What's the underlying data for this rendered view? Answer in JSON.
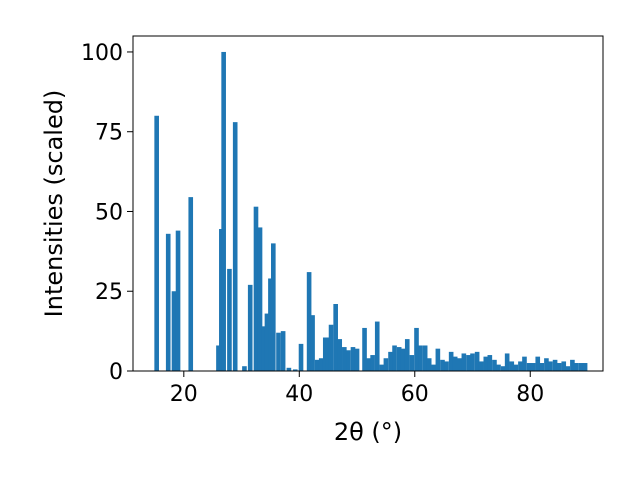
{
  "chart_data": {
    "type": "bar",
    "xlabel": "2θ (°)",
    "ylabel": "Intensities (scaled)",
    "xlim": [
      11.2,
      92.6
    ],
    "ylim": [
      0,
      105
    ],
    "xticks": [
      20,
      40,
      60,
      80
    ],
    "yticks": [
      0,
      25,
      50,
      75,
      100
    ],
    "bar_color": "#1f77b4",
    "bar_width_deg": 0.8,
    "x": [
      15.3,
      17.3,
      18.3,
      19.0,
      21.2,
      26.0,
      26.5,
      26.9,
      27.9,
      28.9,
      30.5,
      31.5,
      32.5,
      33.2,
      33.8,
      34.4,
      35.0,
      35.5,
      36.4,
      37.2,
      38.2,
      39.3,
      40.3,
      41.7,
      42.3,
      43.1,
      43.8,
      44.5,
      45.0,
      45.5,
      46.3,
      47.0,
      47.8,
      48.5,
      49.3,
      50.0,
      51.3,
      52.0,
      52.7,
      53.5,
      54.3,
      55.0,
      55.8,
      56.5,
      57.3,
      58.0,
      58.7,
      59.5,
      60.3,
      61.0,
      61.8,
      62.5,
      63.3,
      64.0,
      64.8,
      65.5,
      66.3,
      67.0,
      67.8,
      68.5,
      69.3,
      70.0,
      70.8,
      71.5,
      72.3,
      73.0,
      73.8,
      74.5,
      75.3,
      76.0,
      76.8,
      77.5,
      78.3,
      79.0,
      79.8,
      80.5,
      81.3,
      82.0,
      82.8,
      83.5,
      84.3,
      85.0,
      85.8,
      86.5,
      87.3,
      88.0,
      88.8,
      89.5
    ],
    "values": [
      80,
      43,
      25,
      44,
      54.5,
      8,
      44.5,
      100,
      32,
      78,
      1.5,
      27,
      51.5,
      45,
      14,
      18,
      29,
      40,
      12,
      12.5,
      1,
      0.5,
      8.5,
      31,
      17.5,
      3.5,
      4,
      10.5,
      10.5,
      14.5,
      21,
      10,
      7.5,
      6.5,
      7.5,
      7,
      13.5,
      4,
      5,
      15.5,
      2,
      4,
      6,
      8,
      7.5,
      7,
      10,
      5,
      13.5,
      8,
      8,
      4,
      2,
      7,
      3.5,
      3,
      6,
      4.5,
      4,
      5.5,
      5,
      5.5,
      6,
      3,
      4.5,
      5,
      3.5,
      2,
      1.5,
      5.5,
      3,
      2,
      3,
      4.5,
      2.5,
      2.5,
      4.5,
      2.5,
      4,
      3,
      3.5,
      2.5,
      3,
      1.5,
      3.5,
      2.5,
      2.5,
      2.5
    ]
  }
}
